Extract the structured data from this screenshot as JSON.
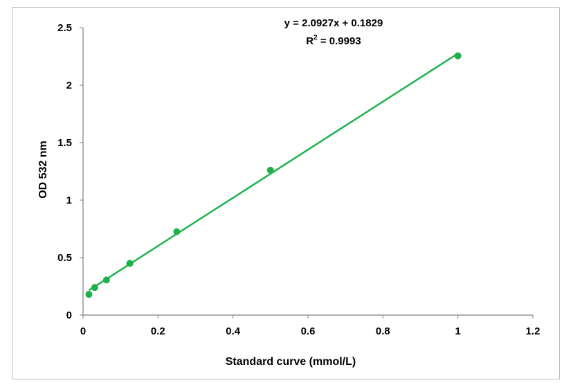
{
  "chart_data": {
    "type": "scatter",
    "xlabel": "Standard curve (mmol/L)",
    "ylabel": "OD 532 nm",
    "xlim": [
      0,
      1.2
    ],
    "ylim": [
      0,
      2.5
    ],
    "xticks": [
      "0",
      "0.2",
      "0.4",
      "0.6",
      "0.8",
      "1",
      "1.2"
    ],
    "yticks": [
      "0",
      "0.5",
      "1",
      "1.5",
      "2",
      "2.5"
    ],
    "xtick_values": [
      0,
      0.2,
      0.4,
      0.6,
      0.8,
      1.0,
      1.2
    ],
    "ytick_values": [
      0,
      0.5,
      1.0,
      1.5,
      2.0,
      2.5
    ],
    "grid": false,
    "legend": "none",
    "series": [
      {
        "color": "#1db14b",
        "x": [
          0.015625,
          0.03125,
          0.0625,
          0.125,
          0.25,
          0.5,
          1.0
        ],
        "y": [
          0.18,
          0.24,
          0.305,
          0.45,
          0.725,
          1.26,
          2.255
        ]
      }
    ],
    "trendline": {
      "type": "linear",
      "slope": 2.0927,
      "intercept": 0.1829,
      "x_range": [
        0.015625,
        1.0
      ],
      "color": "#1db14b"
    },
    "annotations": {
      "equation": "y = 2.0927x + 0.1829",
      "r_squared_prefix": "R",
      "r_squared_sup": "2",
      "r_squared_suffix": " = 0.9993"
    }
  }
}
